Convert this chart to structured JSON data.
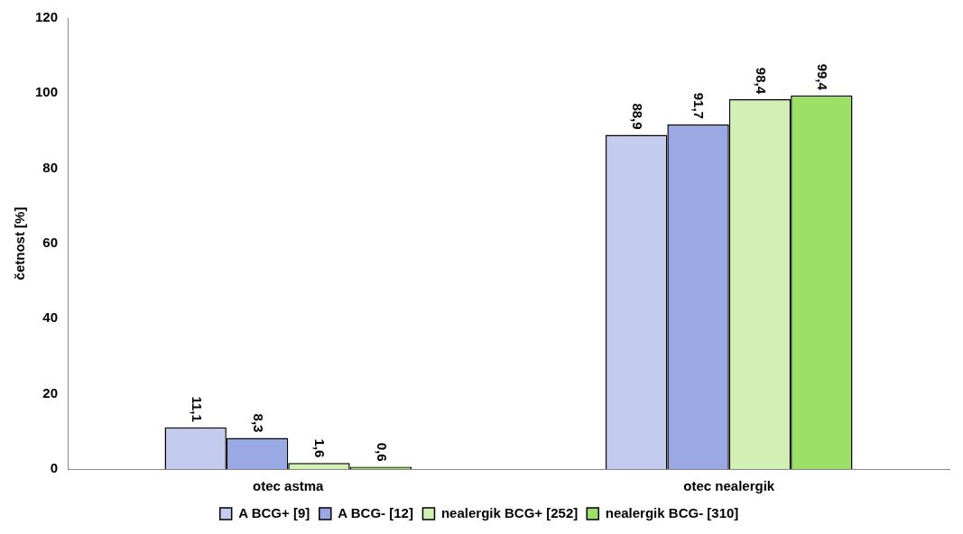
{
  "chart_data": {
    "type": "bar",
    "ylabel": "četnost [%]",
    "categories": [
      "otec astma",
      "otec nealergik"
    ],
    "series": [
      {
        "name": "A BCG+ [9]",
        "color": "#c3cbee",
        "values": [
          11.1,
          88.9
        ],
        "value_labels": [
          "11,1",
          "88,9"
        ]
      },
      {
        "name": "A BCG- [12]",
        "color": "#9aa9e4",
        "values": [
          8.3,
          91.7
        ],
        "value_labels": [
          "8,3",
          "91,7"
        ]
      },
      {
        "name": "nealergik BCG+ [252]",
        "color": "#d2f0b4",
        "values": [
          1.6,
          98.4
        ],
        "value_labels": [
          "1,6",
          "98,4"
        ]
      },
      {
        "name": "nealergik BCG- [310]",
        "color": "#9ce068",
        "values": [
          0.6,
          99.4
        ],
        "value_labels": [
          "0,6",
          "99,4"
        ]
      }
    ],
    "ylim": [
      0,
      120
    ],
    "yticks": [
      0,
      20,
      40,
      60,
      80,
      100,
      120
    ],
    "grid": false,
    "legend": "bottom"
  }
}
